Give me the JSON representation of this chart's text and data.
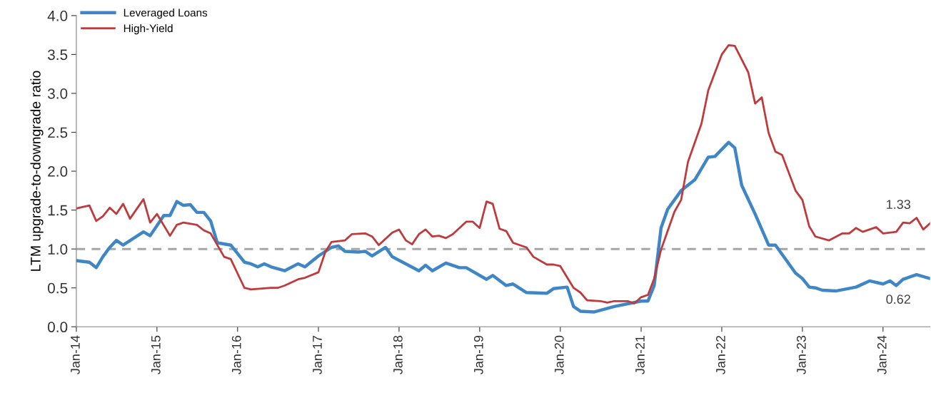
{
  "chart_data": {
    "type": "line",
    "ylabel": "LTM upgrade-to-downgrade ratio",
    "xlim": [
      "2014-01",
      "2024-08"
    ],
    "xticks": [
      {
        "value": "2014-01",
        "label": "Jan-14"
      },
      {
        "value": "2015-01",
        "label": "Jan-15"
      },
      {
        "value": "2016-01",
        "label": "Jan-16"
      },
      {
        "value": "2017-01",
        "label": "Jan-17"
      },
      {
        "value": "2018-01",
        "label": "Jan-18"
      },
      {
        "value": "2019-01",
        "label": "Jan-19"
      },
      {
        "value": "2020-01",
        "label": "Jan-20"
      },
      {
        "value": "2021-01",
        "label": "Jan-21"
      },
      {
        "value": "2022-01",
        "label": "Jan-22"
      },
      {
        "value": "2023-01",
        "label": "Jan-23"
      },
      {
        "value": "2024-01",
        "label": "Jan-24"
      }
    ],
    "ylim": [
      0,
      4
    ],
    "yticks": [
      {
        "value": 0,
        "label": "0.0"
      },
      {
        "value": 0.5,
        "label": "0.5"
      },
      {
        "value": 1,
        "label": "1.0"
      },
      {
        "value": 1.5,
        "label": "1.5"
      },
      {
        "value": 2,
        "label": "2.0"
      },
      {
        "value": 2.5,
        "label": "2.5"
      },
      {
        "value": 3,
        "label": "3.0"
      },
      {
        "value": 3.5,
        "label": "3.5"
      },
      {
        "value": 4,
        "label": "4.0"
      }
    ],
    "grid": false,
    "legend": "top left",
    "marker": "none",
    "line_style": "solid",
    "ref_lines": [
      {
        "axis": "y",
        "value": 1,
        "label": null,
        "color": "#a6a6a6",
        "line_style": "dashed"
      }
    ],
    "annotations": [
      {
        "text": "1.33",
        "x": "2024-08",
        "y": 1.33
      },
      {
        "text": "0.62",
        "x": "2024-08",
        "y": 0.62
      }
    ],
    "series": [
      {
        "name": "Leveraged Loans",
        "color": "#3f86c6",
        "x": [
          "2014-01",
          "2014-03",
          "2014-04",
          "2014-05",
          "2014-06",
          "2014-07",
          "2014-08",
          "2014-11",
          "2014-12",
          "2015-02",
          "2015-03",
          "2015-04",
          "2015-05",
          "2015-06",
          "2015-07",
          "2015-08",
          "2015-09",
          "2015-10",
          "2015-12",
          "2016-02",
          "2016-03",
          "2016-04",
          "2016-05",
          "2016-06",
          "2016-08",
          "2016-10",
          "2016-11",
          "2017-01",
          "2017-03",
          "2017-04",
          "2017-05",
          "2017-07",
          "2017-08",
          "2017-09",
          "2017-11",
          "2017-12",
          "2018-04",
          "2018-05",
          "2018-06",
          "2018-08",
          "2018-10",
          "2018-11",
          "2019-02",
          "2019-03",
          "2019-05",
          "2019-06",
          "2019-08",
          "2019-11",
          "2019-12",
          "2020-02",
          "2020-03",
          "2020-04",
          "2020-06",
          "2020-09",
          "2021-01",
          "2021-02",
          "2021-03",
          "2021-04",
          "2021-05",
          "2021-07",
          "2021-09",
          "2021-11",
          "2021-12",
          "2022-02",
          "2022-03",
          "2022-04",
          "2022-06",
          "2022-08",
          "2022-09",
          "2022-12",
          "2023-01",
          "2023-02",
          "2023-03",
          "2023-04",
          "2023-06",
          "2023-09",
          "2023-11",
          "2024-01",
          "2024-02",
          "2024-03",
          "2024-04",
          "2024-06",
          "2024-08"
        ],
        "values": [
          0.85,
          0.83,
          0.76,
          0.9,
          1.02,
          1.11,
          1.05,
          1.22,
          1.17,
          1.43,
          1.43,
          1.61,
          1.56,
          1.57,
          1.47,
          1.47,
          1.36,
          1.08,
          1.05,
          0.83,
          0.81,
          0.77,
          0.81,
          0.77,
          0.72,
          0.81,
          0.77,
          0.91,
          1.02,
          1.04,
          0.97,
          0.96,
          0.97,
          0.91,
          1.02,
          0.9,
          0.72,
          0.79,
          0.72,
          0.82,
          0.76,
          0.76,
          0.61,
          0.66,
          0.53,
          0.55,
          0.44,
          0.43,
          0.49,
          0.51,
          0.26,
          0.2,
          0.19,
          0.26,
          0.33,
          0.33,
          0.53,
          1.27,
          1.51,
          1.75,
          1.89,
          2.18,
          2.19,
          2.37,
          2.3,
          1.82,
          1.45,
          1.05,
          1.05,
          0.69,
          0.62,
          0.51,
          0.5,
          0.47,
          0.46,
          0.51,
          0.59,
          0.55,
          0.59,
          0.53,
          0.61,
          0.67,
          0.62
        ]
      },
      {
        "name": "High-Yield",
        "color": "#c0393b",
        "x": [
          "2014-01",
          "2014-03",
          "2014-04",
          "2014-05",
          "2014-06",
          "2014-07",
          "2014-08",
          "2014-09",
          "2014-11",
          "2014-12",
          "2015-01",
          "2015-03",
          "2015-04",
          "2015-05",
          "2015-07",
          "2015-08",
          "2015-09",
          "2015-11",
          "2015-12",
          "2016-02",
          "2016-03",
          "2016-06",
          "2016-07",
          "2016-08",
          "2016-10",
          "2016-11",
          "2017-01",
          "2017-02",
          "2017-03",
          "2017-05",
          "2017-06",
          "2017-08",
          "2017-09",
          "2017-10",
          "2017-12",
          "2018-01",
          "2018-02",
          "2018-03",
          "2018-04",
          "2018-05",
          "2018-06",
          "2018-07",
          "2018-08",
          "2018-09",
          "2018-11",
          "2018-12",
          "2019-01",
          "2019-02",
          "2019-03",
          "2019-04",
          "2019-05",
          "2019-06",
          "2019-08",
          "2019-09",
          "2019-11",
          "2019-12",
          "2020-01",
          "2020-03",
          "2020-04",
          "2020-05",
          "2020-07",
          "2020-08",
          "2020-09",
          "2020-11",
          "2020-12",
          "2021-01",
          "2021-02",
          "2021-03",
          "2021-04",
          "2021-06",
          "2021-07",
          "2021-08",
          "2021-10",
          "2021-11",
          "2022-01",
          "2022-02",
          "2022-03",
          "2022-05",
          "2022-06",
          "2022-07",
          "2022-08",
          "2022-09",
          "2022-10",
          "2022-12",
          "2023-01",
          "2023-02",
          "2023-03",
          "2023-05",
          "2023-07",
          "2023-08",
          "2023-09",
          "2023-10",
          "2023-12",
          "2024-01",
          "2024-03",
          "2024-04",
          "2024-05",
          "2024-06",
          "2024-07",
          "2024-08"
        ],
        "values": [
          1.52,
          1.56,
          1.36,
          1.42,
          1.53,
          1.45,
          1.58,
          1.39,
          1.64,
          1.34,
          1.45,
          1.17,
          1.31,
          1.34,
          1.31,
          1.24,
          1.2,
          0.9,
          0.87,
          0.5,
          0.48,
          0.5,
          0.5,
          0.53,
          0.61,
          0.63,
          0.7,
          0.96,
          1.09,
          1.11,
          1.19,
          1.2,
          1.16,
          1.05,
          1.21,
          1.25,
          1.11,
          1.06,
          1.19,
          1.25,
          1.16,
          1.17,
          1.14,
          1.19,
          1.35,
          1.35,
          1.27,
          1.61,
          1.58,
          1.26,
          1.23,
          1.08,
          1.02,
          0.9,
          0.8,
          0.8,
          0.78,
          0.5,
          0.44,
          0.34,
          0.33,
          0.31,
          0.33,
          0.33,
          0.3,
          0.38,
          0.41,
          0.62,
          0.99,
          1.48,
          1.63,
          2.12,
          2.61,
          3.04,
          3.5,
          3.62,
          3.61,
          3.27,
          2.87,
          2.95,
          2.49,
          2.25,
          2.21,
          1.75,
          1.63,
          1.29,
          1.16,
          1.11,
          1.2,
          1.2,
          1.27,
          1.22,
          1.28,
          1.2,
          1.22,
          1.34,
          1.33,
          1.4,
          1.25,
          1.33
        ]
      }
    ]
  }
}
